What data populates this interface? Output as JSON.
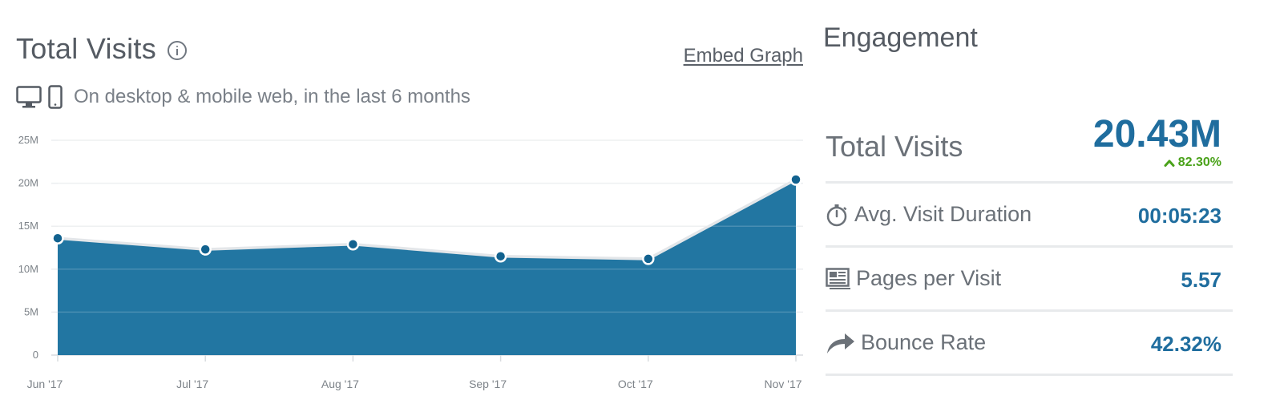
{
  "header": {
    "title": "Total Visits",
    "embed_label": "Embed Graph",
    "subtitle": "On desktop & mobile web, in the last 6 months"
  },
  "chart_data": {
    "type": "area",
    "categories": [
      "Jun '17",
      "Jul '17",
      "Aug '17",
      "Sep '17",
      "Oct '17",
      "Nov '17"
    ],
    "series": [
      {
        "values": [
          13.6,
          12.3,
          12.9,
          11.5,
          11.2,
          20.43
        ]
      }
    ],
    "y_ticks": [
      0,
      5,
      10,
      15,
      20,
      25
    ],
    "y_tick_labels": [
      "0",
      "5M",
      "10M",
      "15M",
      "20M",
      "25M"
    ],
    "ylim": [
      0,
      25
    ],
    "y_unit": "M",
    "grid": true,
    "color": "#2276a2"
  },
  "engagement": {
    "title": "Engagement",
    "total_visits": {
      "label": "Total Visits",
      "value": "20.43M",
      "change": "82.30%",
      "change_color": "#4aa21a"
    },
    "metrics": [
      {
        "label": "Avg. Visit Duration",
        "value": "00:05:23",
        "icon": "stopwatch-icon"
      },
      {
        "label": "Pages per Visit",
        "value": "5.57",
        "icon": "pages-icon"
      },
      {
        "label": "Bounce Rate",
        "value": "42.32%",
        "icon": "bounce-arrow-icon"
      }
    ],
    "value_color": "#1f6d9e"
  }
}
